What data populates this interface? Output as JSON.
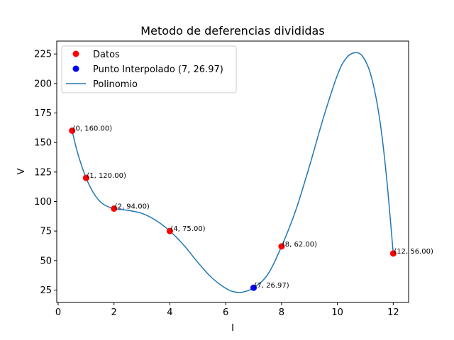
{
  "chart_data": {
    "type": "scatter",
    "title": "Metodo de deferencias divididas",
    "xlabel": "I",
    "ylabel": "V",
    "xlim": [
      -0.05,
      12.55
    ],
    "ylim": [
      14.5,
      235.9
    ],
    "xticks": [
      0,
      2,
      4,
      6,
      8,
      10,
      12
    ],
    "yticks": [
      25,
      50,
      75,
      100,
      125,
      150,
      175,
      200,
      225
    ],
    "grid": false,
    "legend_position": "top-left",
    "colors": {
      "datos": "#ff0000",
      "interpolado": "#0000ff",
      "polinomio": "#1f77b4"
    },
    "series": [
      {
        "name": "Datos",
        "kind": "scatter",
        "points": [
          {
            "x": 0.5,
            "y": 160.0,
            "label": "(0, 160.00)"
          },
          {
            "x": 1,
            "y": 120.0,
            "label": "(1, 120.00)"
          },
          {
            "x": 2,
            "y": 94.0,
            "label": "(2, 94.00)"
          },
          {
            "x": 4,
            "y": 75.0,
            "label": "(4, 75.00)"
          },
          {
            "x": 8,
            "y": 62.0,
            "label": "(8, 62.00)"
          },
          {
            "x": 12,
            "y": 56.0,
            "label": "(12, 56.00)"
          }
        ]
      },
      {
        "name": "Punto Interpolado (7, 26.97)",
        "kind": "scatter",
        "points": [
          {
            "x": 7,
            "y": 26.97,
            "label": "(7, 26.97)"
          }
        ]
      },
      {
        "name": "Polinomio",
        "kind": "line",
        "points": [
          {
            "x": 0.5,
            "y": 160.0
          },
          {
            "x": 0.7,
            "y": 141.0
          },
          {
            "x": 1.0,
            "y": 120.0
          },
          {
            "x": 1.3,
            "y": 106.0
          },
          {
            "x": 1.6,
            "y": 98.0
          },
          {
            "x": 2.0,
            "y": 94.0
          },
          {
            "x": 2.5,
            "y": 92.5
          },
          {
            "x": 3.0,
            "y": 90.0
          },
          {
            "x": 3.5,
            "y": 84.0
          },
          {
            "x": 4.0,
            "y": 75.0
          },
          {
            "x": 4.5,
            "y": 63.0
          },
          {
            "x": 5.0,
            "y": 48.5
          },
          {
            "x": 5.5,
            "y": 35.5
          },
          {
            "x": 6.0,
            "y": 26.5
          },
          {
            "x": 6.3,
            "y": 23.5
          },
          {
            "x": 6.6,
            "y": 23.2
          },
          {
            "x": 7.0,
            "y": 26.97
          },
          {
            "x": 7.5,
            "y": 38.0
          },
          {
            "x": 8.0,
            "y": 62.0
          },
          {
            "x": 8.5,
            "y": 92.0
          },
          {
            "x": 9.0,
            "y": 130.0
          },
          {
            "x": 9.5,
            "y": 171.0
          },
          {
            "x": 10.0,
            "y": 207.0
          },
          {
            "x": 10.3,
            "y": 221.0
          },
          {
            "x": 10.6,
            "y": 226.0
          },
          {
            "x": 10.9,
            "y": 223.0
          },
          {
            "x": 11.2,
            "y": 207.0
          },
          {
            "x": 11.5,
            "y": 172.0
          },
          {
            "x": 11.75,
            "y": 123.0
          },
          {
            "x": 12.0,
            "y": 56.0
          }
        ]
      }
    ]
  }
}
